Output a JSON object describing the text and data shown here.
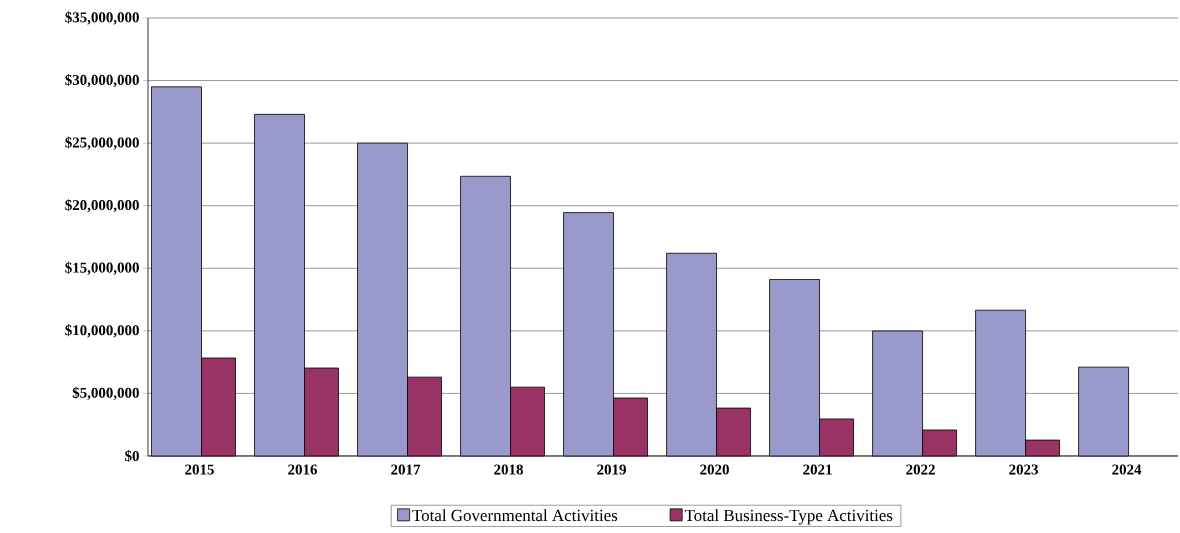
{
  "chart_data": {
    "type": "bar",
    "categories": [
      "2015",
      "2016",
      "2017",
      "2018",
      "2019",
      "2020",
      "2021",
      "2022",
      "2023",
      "2024"
    ],
    "series": [
      {
        "name": "Total Governmental Activities",
        "color": "#9999cc",
        "values": [
          29500000,
          27300000,
          25000000,
          22350000,
          19450000,
          16200000,
          14100000,
          9990000,
          11650000,
          7100000
        ]
      },
      {
        "name": "Total Business-Type Activities",
        "color": "#993366",
        "values": [
          7830000,
          7030000,
          6300000,
          5500000,
          4630000,
          3830000,
          2960000,
          2080000,
          1270000,
          null
        ]
      }
    ],
    "ylim": [
      0,
      35000000
    ],
    "yticks": [
      {
        "value": 0,
        "label": "$0"
      },
      {
        "value": 5000000,
        "label": "$5,000,000"
      },
      {
        "value": 10000000,
        "label": "$10,000,000"
      },
      {
        "value": 15000000,
        "label": "$15,000,000"
      },
      {
        "value": 20000000,
        "label": "$20,000,000"
      },
      {
        "value": 25000000,
        "label": "$25,000,000"
      },
      {
        "value": 30000000,
        "label": "$30,000,000"
      },
      {
        "value": 35000000,
        "label": "$35,000,000"
      }
    ],
    "grid": "y",
    "legend": "bottom"
  }
}
